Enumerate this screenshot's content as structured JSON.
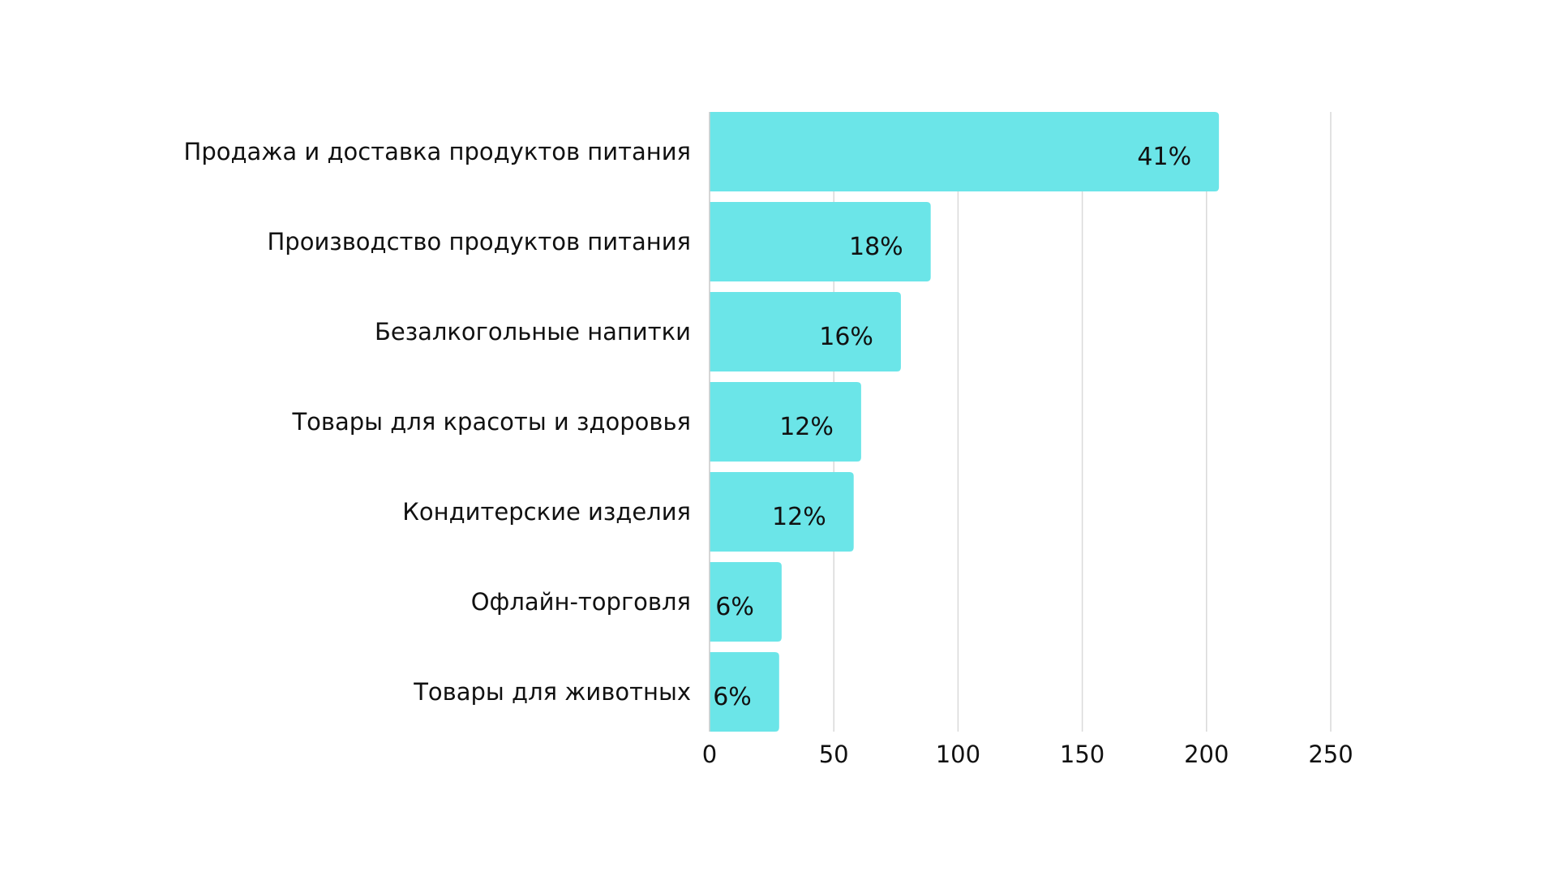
{
  "chart_data": {
    "type": "bar",
    "orientation": "horizontal",
    "title": "",
    "xlabel": "",
    "ylabel": "",
    "categories": [
      "Продажа и доставка продуктов питания",
      "Производство продуктов питания",
      "Безалкогольные напитки",
      "Товары для красоты и здоровья",
      "Кондитерские изделия",
      "Офлайн-торговля",
      "Товары для животных"
    ],
    "values": [
      205,
      89,
      77,
      61,
      58,
      29,
      28
    ],
    "data_labels": [
      "41%",
      "18%",
      "16%",
      "12%",
      "12%",
      "6%",
      "6%"
    ],
    "xlim": [
      0,
      250
    ],
    "xticks": [
      "0",
      "50",
      "100",
      "150",
      "200",
      "250"
    ],
    "grid": true,
    "bar_color": "#6be5e8",
    "grid_color": "#d9d9d9"
  }
}
